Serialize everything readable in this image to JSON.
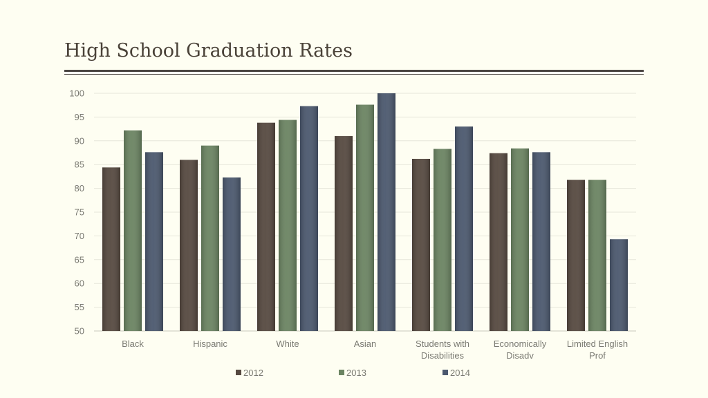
{
  "slide": {
    "title": "High School Graduation Rates"
  },
  "chart_data": {
    "type": "bar",
    "title": "",
    "xlabel": "",
    "ylabel": "",
    "ylim": [
      50,
      100
    ],
    "yticks": [
      50,
      55,
      60,
      65,
      70,
      75,
      80,
      85,
      90,
      95,
      100
    ],
    "grid": true,
    "legend_position": "bottom",
    "categories": [
      [
        "Black"
      ],
      [
        "Hispanic"
      ],
      [
        "White"
      ],
      [
        "Asian"
      ],
      [
        "Students  with",
        "Disabilities"
      ],
      [
        "Economically",
        "Disadv"
      ],
      [
        "Limited  English",
        "Prof"
      ]
    ],
    "series": [
      {
        "name": "2012",
        "color": "#564940",
        "values": [
          84.4,
          86.0,
          93.8,
          91.0,
          86.2,
          87.4,
          81.8
        ]
      },
      {
        "name": "2013",
        "color": "#6b8462",
        "values": [
          92.2,
          89.0,
          94.4,
          97.6,
          88.3,
          88.4,
          81.8
        ]
      },
      {
        "name": "2014",
        "color": "#4b586e",
        "values": [
          87.6,
          82.3,
          97.3,
          100.0,
          93.0,
          87.6,
          69.3
        ]
      }
    ]
  }
}
